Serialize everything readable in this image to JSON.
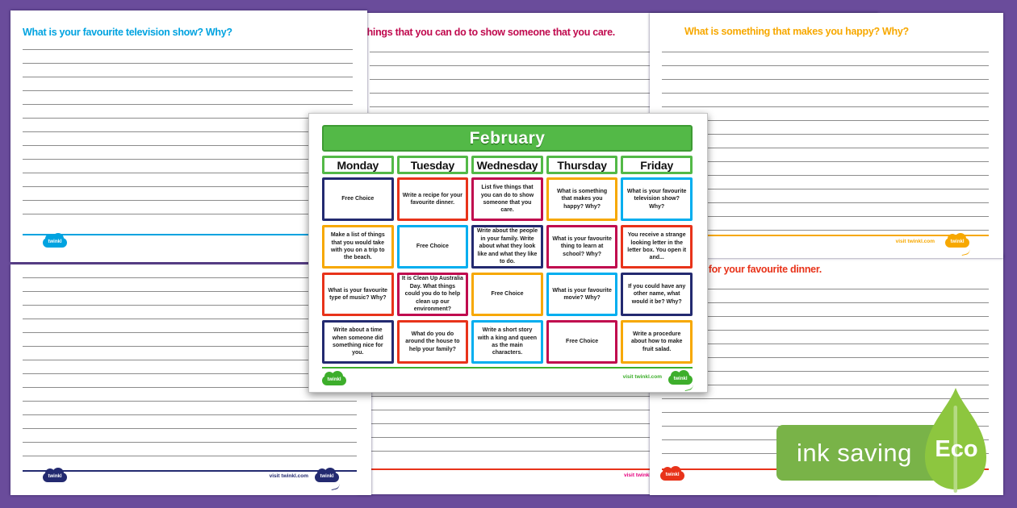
{
  "palette": {
    "purple": "#6A4C9B",
    "green": "#53B947",
    "green_dark": "#3D9B33",
    "navy": "#232A70",
    "red": "#E8331A",
    "crimson": "#C00A4E",
    "orange": "#F7A800",
    "blue": "#00AEEF",
    "header_blue": "#00A3E0",
    "pink": "#E6007E",
    "logo_green": "#3DAE2B",
    "eco_badge_green": "#79B348",
    "eco_leaf_green": "#8DC63F",
    "line_gray": "#8C8C8C"
  },
  "branding": {
    "logo_text": "twinkl",
    "visit_text": "visit twinkl.com"
  },
  "eco": {
    "label": "ink saving",
    "badge": "Eco"
  },
  "pages": {
    "top_left": {
      "heading": "What is your favourite television show? Why?"
    },
    "top_middle": {
      "heading": "List five things that you can do to show someone that you care."
    },
    "top_right": {
      "heading": "What is something that makes you happy? Why?"
    },
    "bottom_right": {
      "heading": "Write a recipe for your favourite dinner."
    }
  },
  "calendar": {
    "title": "February",
    "days": [
      "Monday",
      "Tuesday",
      "Wednesday",
      "Thursday",
      "Friday"
    ],
    "rows": [
      [
        {
          "text": "Free Choice",
          "color": "navy"
        },
        {
          "text": "Write a recipe for your favourite dinner.",
          "color": "red"
        },
        {
          "text": "List five things that you can do to show someone that you care.",
          "color": "crimson"
        },
        {
          "text": "What is something that makes you happy? Why?",
          "color": "orange"
        },
        {
          "text": "What is your favourite television show? Why?",
          "color": "blue"
        }
      ],
      [
        {
          "text": "Make a list of things that you would take with you on a trip to the beach.",
          "color": "orange"
        },
        {
          "text": "Free Choice",
          "color": "blue"
        },
        {
          "text": "Write about the people in your family. Write about what they look like and what they like to do.",
          "color": "navy"
        },
        {
          "text": "What is your favourite thing to learn at school? Why?",
          "color": "crimson"
        },
        {
          "text": "You receive a strange looking letter in the letter box. You open it and...",
          "color": "red"
        }
      ],
      [
        {
          "text": "What is your favourite type of music? Why?",
          "color": "red"
        },
        {
          "text": "It is Clean Up Australia Day. What things could you do to help clean up our environment?",
          "color": "crimson"
        },
        {
          "text": "Free Choice",
          "color": "orange"
        },
        {
          "text": "What is your favourite movie? Why?",
          "color": "blue"
        },
        {
          "text": "If you could have any other name, what would it be? Why?",
          "color": "navy"
        }
      ],
      [
        {
          "text": "Write about a time when someone did something nice for you.",
          "color": "navy"
        },
        {
          "text": "What do you do around the house to help your family?",
          "color": "red"
        },
        {
          "text": "Write a short story with a king and queen as the main characters.",
          "color": "blue"
        },
        {
          "text": "Free Choice",
          "color": "crimson"
        },
        {
          "text": "Write a procedure about how to make fruit salad.",
          "color": "orange"
        }
      ]
    ]
  }
}
